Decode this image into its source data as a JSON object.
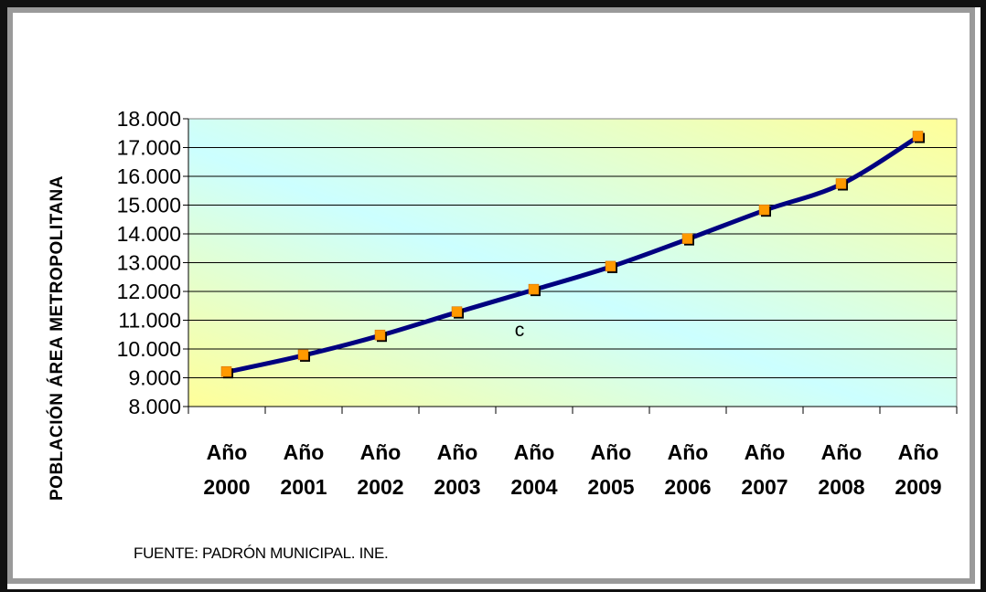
{
  "chart_data": {
    "type": "line",
    "ylabel": "POBLACIÓN ÁREA METROPOLITANA",
    "xlabel": "",
    "categories": [
      [
        "Año",
        "2000"
      ],
      [
        "Año",
        "2001"
      ],
      [
        "Año",
        "2002"
      ],
      [
        "Año",
        "2003"
      ],
      [
        "Año",
        "2004"
      ],
      [
        "Año",
        "2005"
      ],
      [
        "Año",
        "2006"
      ],
      [
        "Año",
        "2007"
      ],
      [
        "Año",
        "2008"
      ],
      [
        "Año",
        "2009"
      ]
    ],
    "values": [
      9200,
      9780,
      10470,
      11280,
      12060,
      12860,
      13820,
      14820,
      15730,
      17380
    ],
    "ylim": [
      8000,
      18000
    ],
    "yticks": [
      "8.000",
      "9.000",
      "10.000",
      "11.000",
      "12.000",
      "13.000",
      "14.000",
      "15.000",
      "16.000",
      "17.000",
      "18.000"
    ],
    "grid": true,
    "annotation": "c",
    "source": "FUENTE: PADRÓN MUNICIPAL. INE.",
    "colors": {
      "line": "#000080",
      "marker": "#ff9900",
      "marker_shadow": "#000000",
      "plot_gradient_start": "#ccffff",
      "plot_gradient_end": "#ffff99",
      "frame": "#111111",
      "inner_border": "#9a9a9a"
    }
  }
}
